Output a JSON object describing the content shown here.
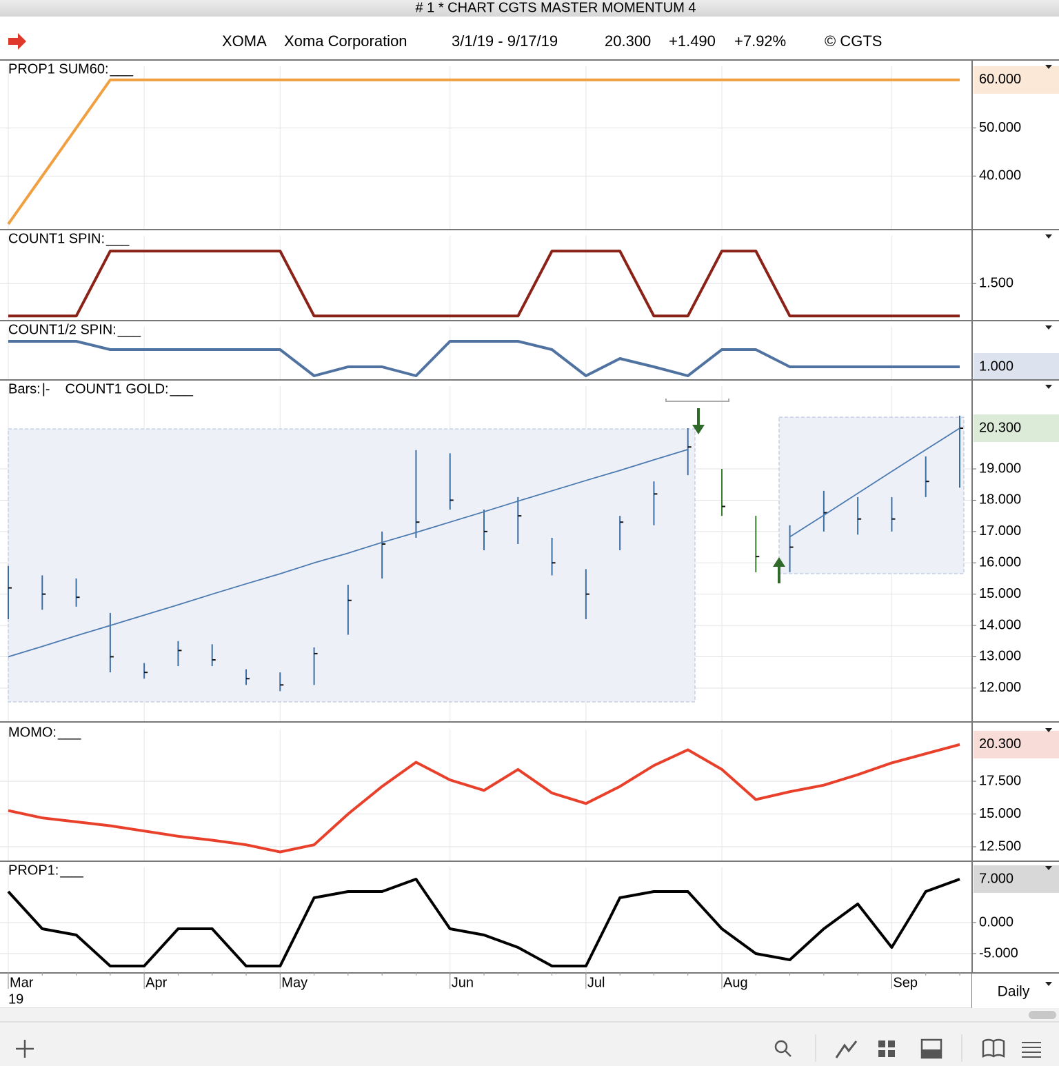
{
  "window_title": "# 1 * CHART CGTS MASTER MOMENTUM 4",
  "header": {
    "symbol": "XOMA",
    "company": "Xoma Corporation",
    "range": "3/1/19 - 9/17/19",
    "last": "20.300",
    "change": "+1.490",
    "change_pct": "+7.92%",
    "copyright": "© CGTS"
  },
  "timeframe": "Daily",
  "chart_data": [
    {
      "type": "line",
      "title": "PROP1 SUM60:",
      "legend_marker": "___",
      "color": "#f0a040",
      "values": [
        30,
        40,
        50,
        60,
        60,
        60,
        60,
        60,
        60,
        60,
        60,
        60,
        60,
        60,
        60,
        60,
        60,
        60,
        60,
        60,
        60,
        60,
        60,
        60,
        60,
        60,
        60,
        60,
        60
      ],
      "ylim": [
        29,
        64
      ],
      "yticks": [
        {
          "value": 40,
          "label": "40.000"
        },
        {
          "value": 50,
          "label": "50.000"
        }
      ],
      "last_label": {
        "value": 60,
        "label": "60.000"
      },
      "label_bg": "#fbe8d6",
      "label_color": "#b06a20",
      "grid": true
    },
    {
      "type": "line",
      "title": "COUNT1 SPIN:",
      "legend_marker": "___",
      "color": "#8b2218",
      "values": [
        1,
        1,
        1,
        2,
        2,
        2,
        2,
        2,
        2,
        1,
        1,
        1,
        1,
        1,
        1,
        1,
        2,
        2,
        2,
        1,
        1,
        2,
        2,
        1,
        1,
        1,
        1,
        1,
        1
      ],
      "ylim": [
        0.94,
        2.32
      ],
      "yticks": [
        {
          "value": 1.5,
          "label": "1.500"
        }
      ],
      "grid": true
    },
    {
      "type": "line",
      "title": "COUNT1/2 SPIN:",
      "legend_marker": "___",
      "color": "#4f72a0",
      "values": [
        1.37,
        1.37,
        1.37,
        1.25,
        1.25,
        1.25,
        1.25,
        1.25,
        1.25,
        0.87,
        1,
        1,
        0.87,
        1.37,
        1.37,
        1.37,
        1.25,
        0.87,
        1.12,
        1,
        0.87,
        1.25,
        1.25,
        1,
        1,
        1,
        1,
        1,
        1
      ],
      "ylim": [
        0.82,
        1.66
      ],
      "yticks": [],
      "last_label": {
        "value": 1,
        "label": "1.000"
      },
      "label_bg": "#dde3ee",
      "label_color": "#34507a",
      "grid": true
    },
    {
      "type": "ohlc",
      "title": "Bars:",
      "legend_marker": "|-",
      "color": "#3b6ea5",
      "high": [
        15.9,
        15.6,
        15.5,
        14.4,
        12.8,
        13.5,
        13.4,
        12.6,
        12.5,
        13.3,
        15.3,
        17.0,
        19.6,
        19.5,
        17.7,
        18.1,
        16.8,
        15.8,
        17.5,
        18.6,
        20.3,
        19.0,
        17.5,
        17.2,
        18.3,
        18.1,
        18.1,
        19.4,
        20.7
      ],
      "low": [
        14.2,
        14.5,
        14.6,
        12.5,
        12.3,
        12.7,
        12.7,
        12.1,
        11.9,
        12.1,
        13.7,
        15.5,
        16.8,
        17.7,
        16.4,
        16.6,
        15.6,
        14.2,
        16.4,
        17.2,
        18.8,
        17.5,
        15.7,
        15.7,
        17.0,
        16.9,
        17.0,
        18.1,
        18.4
      ],
      "close": [
        15.2,
        15.0,
        14.9,
        13.0,
        12.5,
        13.2,
        12.9,
        12.3,
        12.1,
        13.1,
        14.8,
        16.6,
        17.3,
        18.0,
        17.0,
        17.5,
        16.0,
        15.0,
        17.3,
        18.2,
        19.7,
        17.8,
        16.2,
        16.5,
        17.6,
        17.4,
        17.4,
        18.6,
        20.3
      ],
      "bar_colors": [
        "#3b6ea5",
        "#3b6ea5",
        "#3b6ea5",
        "#3b6ea5",
        "#3b6ea5",
        "#3b6ea5",
        "#3b6ea5",
        "#3b6ea5",
        "#3b6ea5",
        "#3b6ea5",
        "#3b6ea5",
        "#3b6ea5",
        "#3b6ea5",
        "#3b6ea5",
        "#3b6ea5",
        "#3b6ea5",
        "#3b6ea5",
        "#3b6ea5",
        "#3b6ea5",
        "#3b6ea5",
        "#3b6ea5",
        "#3a7d2a",
        "#3a7d2a",
        "#3b6ea5",
        "#3b6ea5",
        "#3b6ea5",
        "#3b6ea5",
        "#3b6ea5",
        "#3b6ea5"
      ],
      "series": [
        {
          "name": "COUNT1 GOLD:",
          "legend_marker": "___",
          "color": "#4a7ab0",
          "values": [
            13.0,
            13.33,
            13.67,
            14.0,
            14.33,
            14.66,
            15.0,
            15.33,
            15.65,
            16.0,
            16.31,
            16.65,
            16.97,
            17.3,
            17.63,
            17.97,
            18.3,
            18.63,
            18.95,
            19.29,
            19.62,
            null,
            null,
            16.83,
            17.52,
            18.22,
            18.92,
            19.61,
            20.3
          ]
        }
      ],
      "ylim": [
        10.94,
        21.82
      ],
      "yticks": [
        {
          "value": 12,
          "label": "12.000"
        },
        {
          "value": 13,
          "label": "13.000"
        },
        {
          "value": 14,
          "label": "14.000"
        },
        {
          "value": 15,
          "label": "15.000"
        },
        {
          "value": 16,
          "label": "16.000"
        },
        {
          "value": 17,
          "label": "17.000"
        },
        {
          "value": 18,
          "label": "18.000"
        },
        {
          "value": 19,
          "label": "19.000"
        }
      ],
      "last_label": {
        "value": 20.3,
        "label": "20.300"
      },
      "label_bg": "#dcebd8",
      "label_color": "#2d5a22",
      "grid": true
    },
    {
      "type": "line",
      "title": "MOMO:",
      "legend_marker": "___",
      "color": "#e8402a",
      "values": [
        15.26,
        14.7,
        14.4,
        14.1,
        13.7,
        13.3,
        13.0,
        12.65,
        12.1,
        12.65,
        15.0,
        17.1,
        18.95,
        17.6,
        16.8,
        18.4,
        16.6,
        15.8,
        17.1,
        18.7,
        19.9,
        18.4,
        16.1,
        16.7,
        17.2,
        18.0,
        18.9,
        19.6,
        20.3
      ],
      "ylim": [
        11.45,
        21.87
      ],
      "yticks": [
        {
          "value": 12.5,
          "label": "12.500"
        },
        {
          "value": 15,
          "label": "15.000"
        },
        {
          "value": 17.5,
          "label": "17.500"
        }
      ],
      "last_label": {
        "value": 20.3,
        "label": "20.300"
      },
      "label_bg": "#f8dcd8",
      "label_color": "#a02818",
      "grid": true
    },
    {
      "type": "line",
      "title": "PROP1:",
      "legend_marker": "___",
      "color": "#000000",
      "values": [
        5,
        -1,
        -2,
        -7,
        -7,
        -1,
        -1,
        -7,
        -7,
        4,
        5,
        5,
        7,
        -1,
        -2,
        -4,
        -7,
        -7,
        4,
        5,
        5,
        -1,
        -5,
        -6,
        -1,
        3,
        -4,
        5,
        7
      ],
      "categories": [
        "Mar",
        null,
        null,
        null,
        "Apr",
        null,
        null,
        null,
        "May",
        null,
        null,
        null,
        null,
        "Jun",
        null,
        null,
        null,
        "Jul",
        null,
        null,
        null,
        "Aug",
        null,
        null,
        null,
        null,
        "Sep",
        null,
        null
      ],
      "x_year_label": "19",
      "ylim": [
        -8,
        9.78
      ],
      "yticks": [
        {
          "value": -5,
          "label": "-5.000"
        },
        {
          "value": 0,
          "label": "0.000"
        }
      ],
      "last_label": {
        "value": 7,
        "label": "7.000"
      },
      "label_bg": "#d8d8d8",
      "label_color": "#000000",
      "grid": true
    }
  ]
}
